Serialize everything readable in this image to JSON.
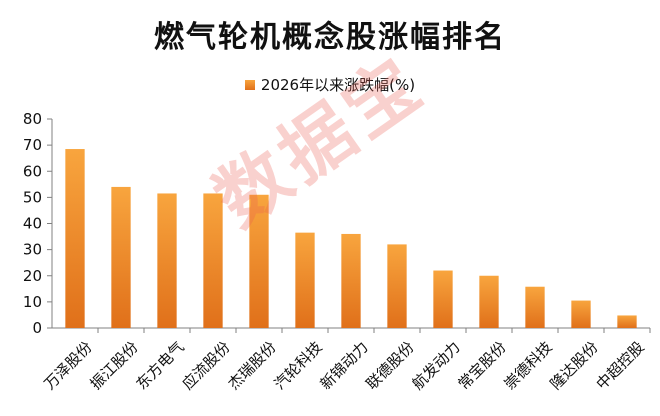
{
  "colors": {
    "bar_top": "#f8a53e",
    "bar_bottom": "#e0701a",
    "grid": "#bfbfbf",
    "axis": "#808080",
    "watermark": "#e85a50"
  },
  "watermark_text": "数据宝",
  "chart_data": {
    "type": "bar",
    "title": "燃气轮机概念股涨幅排名",
    "xlabel": "",
    "ylabel": "",
    "ylim": [
      0,
      80
    ],
    "yticks": [
      0,
      10,
      20,
      30,
      40,
      50,
      60,
      70,
      80
    ],
    "grid": false,
    "legend_position": "top",
    "categories": [
      "万泽股份",
      "振江股份",
      "东方电气",
      "应流股份",
      "杰瑞股份",
      "汽轮科技",
      "新锦动力",
      "联德股份",
      "航发动力",
      "常宝股份",
      "崇德科技",
      "隆达股份",
      "中超控股"
    ],
    "series": [
      {
        "name": "2026年以来涨跌幅(%)",
        "values": [
          68.5,
          54,
          51.5,
          51.5,
          51,
          36.5,
          36,
          32,
          22,
          20,
          15.8,
          10.5,
          4.8
        ]
      }
    ]
  }
}
